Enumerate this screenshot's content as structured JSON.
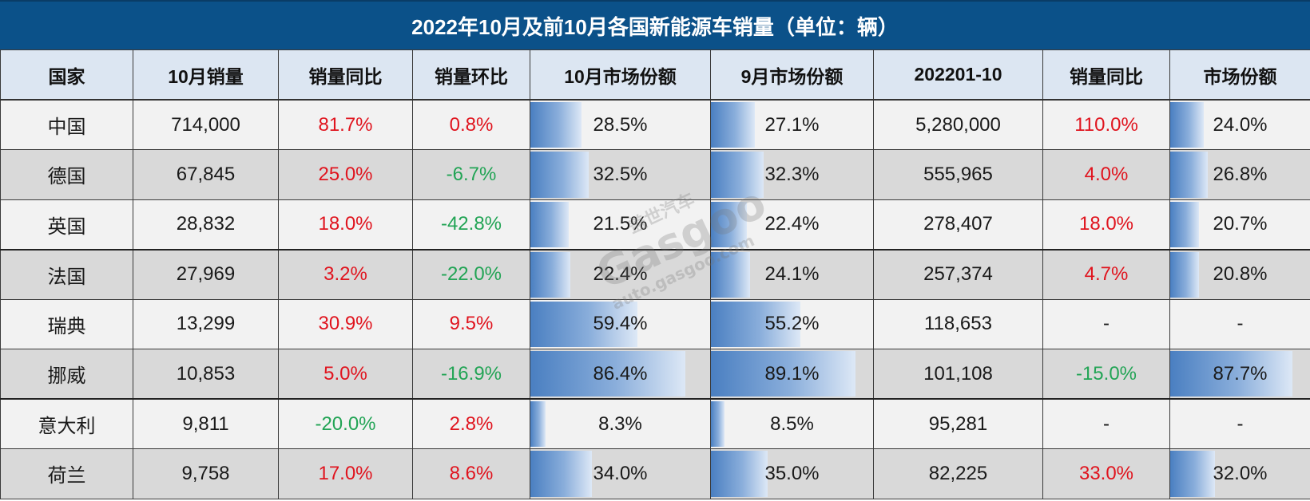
{
  "title": "2022年10月及前10月各国新能源车销量（单位：辆）",
  "headers": [
    "国家",
    "10月销量",
    "销量同比",
    "销量环比",
    "10月市场份额",
    "9月市场份额",
    "202201-10",
    "销量同比",
    "市场份额"
  ],
  "colors": {
    "title_bg": "#0b5189",
    "header_bg": "#dce6f2",
    "row_light": "#f2f2f2",
    "row_dark": "#d9d9d9",
    "positive": "#e0141e",
    "negative": "#22a455",
    "bar": "#4a7fc1"
  },
  "rows": [
    {
      "country": "中国",
      "oct_sales": "714,000",
      "yoy": "81.7%",
      "mom": "0.8%",
      "oct_share": "28.5%",
      "sep_share": "27.1%",
      "ytd_sales": "5,280,000",
      "ytd_yoy": "110.0%",
      "ytd_share": "24.0%"
    },
    {
      "country": "德国",
      "oct_sales": "67,845",
      "yoy": "25.0%",
      "mom": "-6.7%",
      "oct_share": "32.5%",
      "sep_share": "32.3%",
      "ytd_sales": "555,965",
      "ytd_yoy": "4.0%",
      "ytd_share": "26.8%"
    },
    {
      "country": "英国",
      "oct_sales": "28,832",
      "yoy": "18.0%",
      "mom": "-42.8%",
      "oct_share": "21.5%",
      "sep_share": "22.4%",
      "ytd_sales": "278,407",
      "ytd_yoy": "18.0%",
      "ytd_share": "20.7%"
    },
    {
      "country": "法国",
      "oct_sales": "27,969",
      "yoy": "3.2%",
      "mom": "-22.0%",
      "oct_share": "22.4%",
      "sep_share": "24.1%",
      "ytd_sales": "257,374",
      "ytd_yoy": "4.7%",
      "ytd_share": "20.8%"
    },
    {
      "country": "瑞典",
      "oct_sales": "13,299",
      "yoy": "30.9%",
      "mom": "9.5%",
      "oct_share": "59.4%",
      "sep_share": "55.2%",
      "ytd_sales": "118,653",
      "ytd_yoy": "-",
      "ytd_share": "-"
    },
    {
      "country": "挪威",
      "oct_sales": "10,853",
      "yoy": "5.0%",
      "mom": "-16.9%",
      "oct_share": "86.4%",
      "sep_share": "89.1%",
      "ytd_sales": "101,108",
      "ytd_yoy": "-15.0%",
      "ytd_share": "87.7%"
    },
    {
      "country": "意大利",
      "oct_sales": "9,811",
      "yoy": "-20.0%",
      "mom": "2.8%",
      "oct_share": "8.3%",
      "sep_share": "8.5%",
      "ytd_sales": "95,281",
      "ytd_yoy": "-",
      "ytd_share": "-"
    },
    {
      "country": "荷兰",
      "oct_sales": "9,758",
      "yoy": "17.0%",
      "mom": "8.6%",
      "oct_share": "34.0%",
      "sep_share": "35.0%",
      "ytd_sales": "82,225",
      "ytd_yoy": "33.0%",
      "ytd_share": "32.0%"
    }
  ],
  "watermark": {
    "logo": "Gasgoo",
    "cn": "盖世汽车",
    "url": "auto.gasgoo.com"
  }
}
